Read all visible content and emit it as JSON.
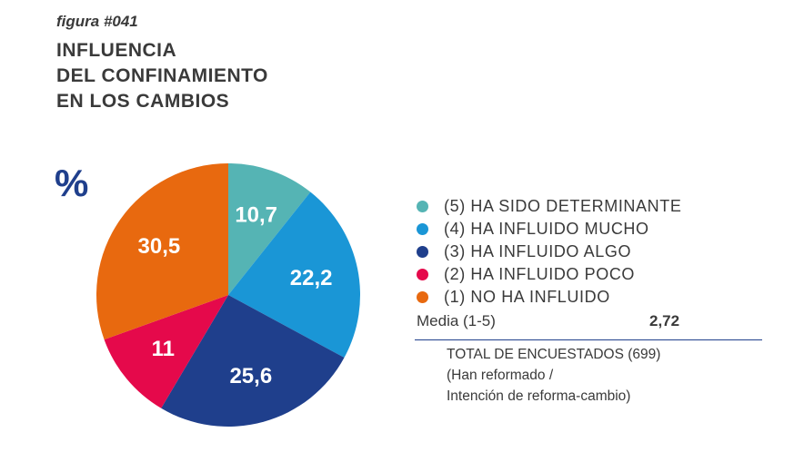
{
  "figure": {
    "label": "figura #041",
    "title_lines": [
      "INFLUENCIA",
      "DEL CONFINAMIENTO",
      "EN LOS CAMBIOS"
    ],
    "unit": "%"
  },
  "chart_data": {
    "type": "pie",
    "title": "INFLUENCIA DEL CONFINAMIENTO EN LOS CAMBIOS",
    "unit": "%",
    "slices": [
      {
        "label": "(5) HA SIDO DETERMINANTE",
        "value": 10.7,
        "display": "10,7",
        "color": "#55b4b4"
      },
      {
        "label": "(4) HA INFLUIDO MUCHO",
        "value": 22.2,
        "display": "22,2",
        "color": "#1a96d6"
      },
      {
        "label": "(3) HA INFLUIDO ALGO",
        "value": 25.6,
        "display": "25,6",
        "color": "#1f3f8c"
      },
      {
        "label": "(2) HA INFLUIDO POCO",
        "value": 11,
        "display": "11",
        "color": "#e5094b"
      },
      {
        "label": "(1) NO HA INFLUIDO",
        "value": 30.5,
        "display": "30,5",
        "color": "#e8690f"
      }
    ],
    "legend_position": "right"
  },
  "summary": {
    "media_label": "Media (1-5)",
    "media_value": "2,72",
    "total_lines": [
      "TOTAL DE ENCUESTADOS (699)",
      "(Han reformado /",
      "Intención de reforma-cambio)"
    ]
  }
}
